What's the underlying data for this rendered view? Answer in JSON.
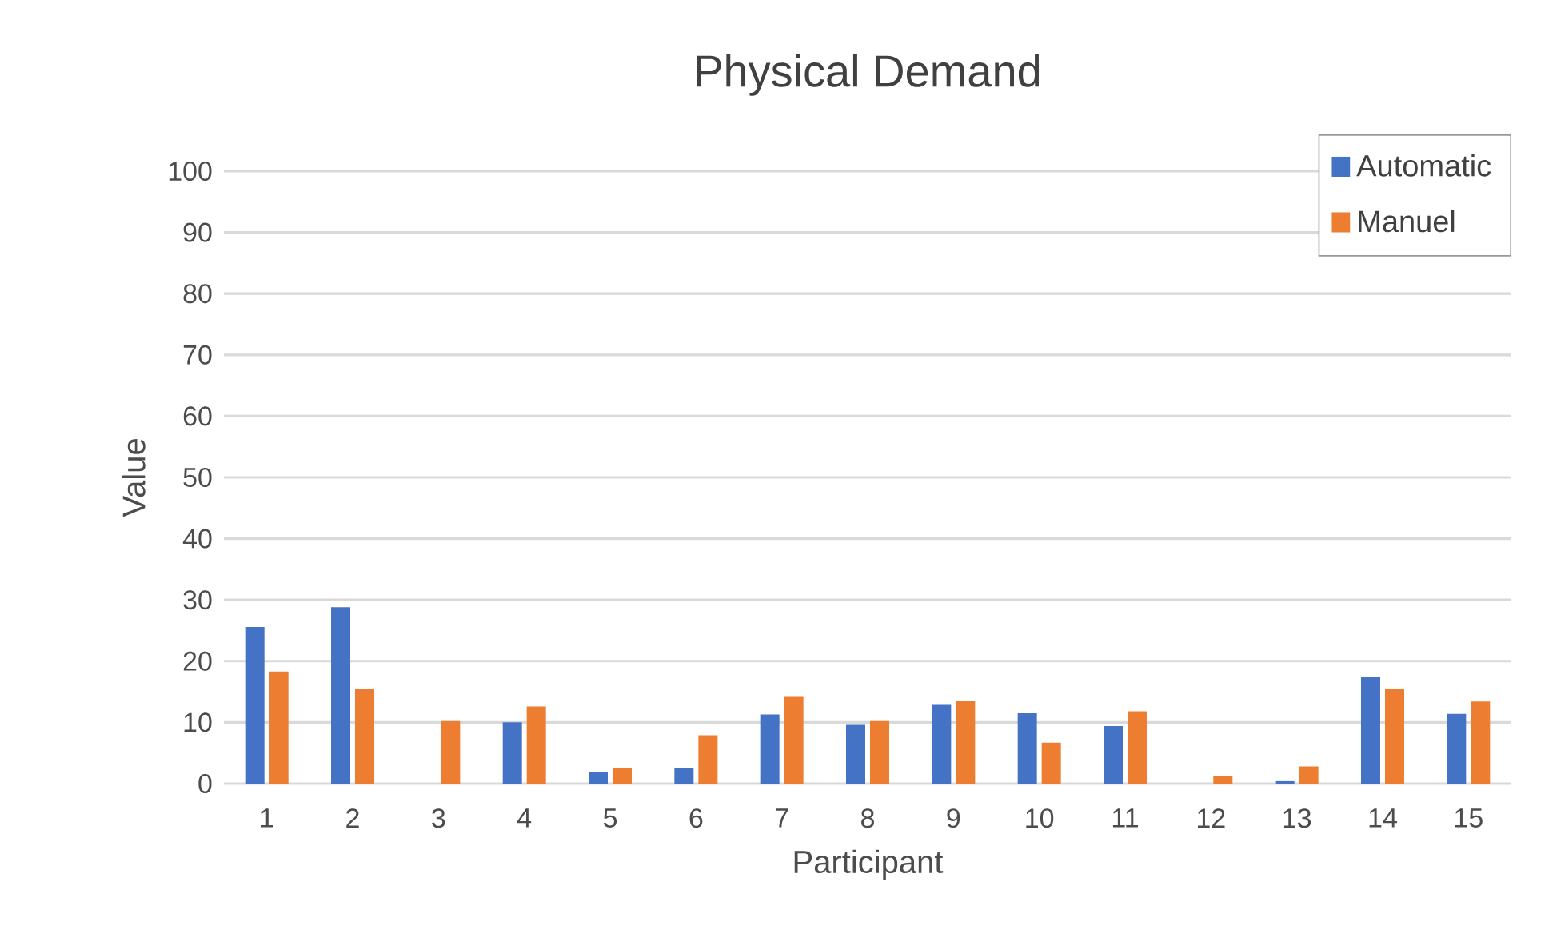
{
  "chart_data": {
    "type": "bar",
    "title": "Physical Demand",
    "xlabel": "Participant",
    "ylabel": "Value",
    "categories": [
      "1",
      "2",
      "3",
      "4",
      "5",
      "6",
      "7",
      "8",
      "9",
      "10",
      "11",
      "12",
      "13",
      "14",
      "15"
    ],
    "series": [
      {
        "name": "Automatic",
        "color": "#4472c4",
        "values": [
          25.6,
          28.8,
          0,
          10.0,
          1.9,
          2.5,
          11.3,
          9.6,
          13.0,
          11.5,
          9.4,
          0,
          0.4,
          17.5,
          11.4
        ]
      },
      {
        "name": "Manuel",
        "color": "#ed7d31",
        "values": [
          18.3,
          15.5,
          10.2,
          12.6,
          2.6,
          7.9,
          14.3,
          10.2,
          13.5,
          6.7,
          11.8,
          1.3,
          2.8,
          15.5,
          13.4
        ]
      }
    ],
    "ylim": [
      0,
      100
    ],
    "yticks": [
      0,
      10,
      20,
      30,
      40,
      50,
      60,
      70,
      80,
      90,
      100
    ],
    "grid": "y",
    "legend": "top right"
  }
}
